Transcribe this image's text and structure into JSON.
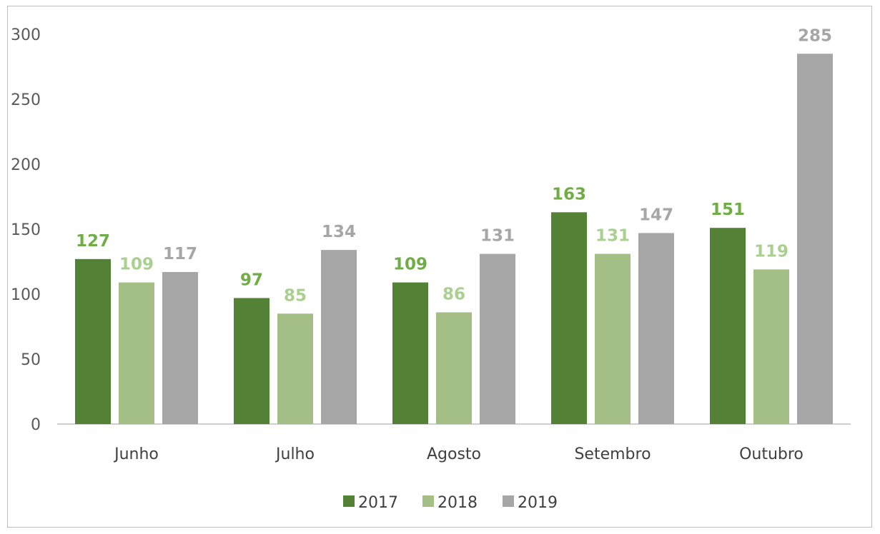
{
  "chart_data": {
    "type": "bar",
    "title": "",
    "xlabel": "",
    "ylabel": "",
    "categories": [
      "Junho",
      "Julho",
      "Agosto",
      "Setembro",
      "Outubro"
    ],
    "series": [
      {
        "name": "2017",
        "values": [
          127,
          97,
          109,
          163,
          151
        ],
        "color": "#538135",
        "label_color": "#70ad47"
      },
      {
        "name": "2018",
        "values": [
          109,
          85,
          86,
          131,
          119
        ],
        "color": "#a3bf85",
        "label_color": "#a9d08e"
      },
      {
        "name": "2019",
        "values": [
          117,
          134,
          131,
          147,
          285
        ],
        "color": "#a6a6a6",
        "label_color": "#a6a6a6"
      }
    ],
    "ylim": [
      0,
      300
    ],
    "yticks": [
      0,
      50,
      100,
      150,
      200,
      250,
      300
    ],
    "grid": false,
    "legend_position": "bottom",
    "data_labels": true
  }
}
